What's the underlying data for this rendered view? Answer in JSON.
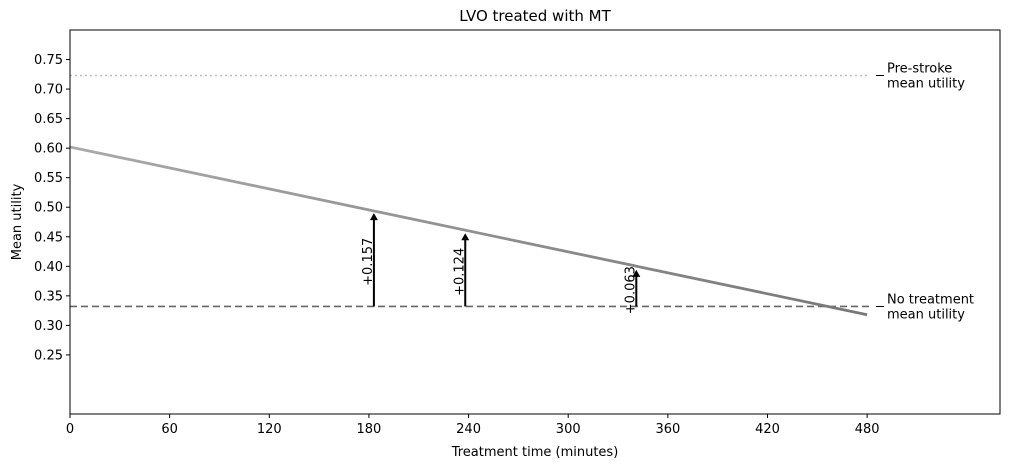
{
  "chart_data": {
    "type": "line",
    "title": "LVO treated with MT",
    "xlabel": "Treatment time (minutes)",
    "ylabel": "Mean utility",
    "xlim": [
      0,
      560
    ],
    "ylim": [
      0.15,
      0.8
    ],
    "xticks": [
      0,
      60,
      120,
      180,
      240,
      300,
      360,
      420,
      480
    ],
    "xtick_labels": [
      "0",
      "60",
      "120",
      "180",
      "240",
      "300",
      "360",
      "420",
      "480"
    ],
    "yticks": [
      0.25,
      0.3,
      0.35,
      0.4,
      0.45,
      0.5,
      0.55,
      0.6,
      0.65,
      0.7,
      0.75
    ],
    "ytick_labels": [
      "0.25",
      "0.30",
      "0.35",
      "0.40",
      "0.45",
      "0.50",
      "0.55",
      "0.60",
      "0.65",
      "0.70",
      "0.75"
    ],
    "grid": false,
    "series": [
      {
        "x": [
          0,
          480
        ],
        "y": [
          0.602,
          0.318
        ],
        "color_start": "#aaaaaa",
        "color_end": "#777777",
        "style": "solid"
      }
    ],
    "reference_lines": [
      {
        "y": 0.723,
        "label": "Pre-stroke\nmean utility",
        "color": "#bbbbbb",
        "style": "dotted"
      },
      {
        "y": 0.332,
        "label": "No treatment\nmean utility",
        "color": "#666666",
        "style": "dashed"
      }
    ],
    "annotations": [
      {
        "x": 183,
        "y_from": 0.332,
        "y_to": 0.49,
        "label": "+0.157"
      },
      {
        "x": 238,
        "y_from": 0.332,
        "y_to": 0.456,
        "label": "+0.124"
      },
      {
        "x": 341,
        "y_from": 0.332,
        "y_to": 0.394,
        "label": "+0.063"
      }
    ]
  }
}
